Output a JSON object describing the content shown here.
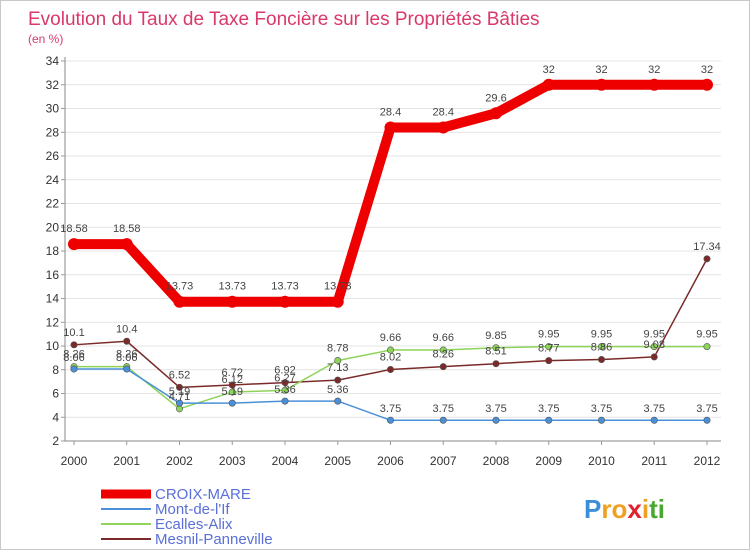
{
  "chart_data": {
    "type": "line",
    "title": "Evolution du Taux de Taxe Foncière sur les Propriétés Bâties",
    "subtitle": "(en %)",
    "xlabel": "",
    "ylabel": "",
    "ylim": [
      2,
      34
    ],
    "yticks": [
      2,
      4,
      6,
      8,
      10,
      12,
      14,
      16,
      18,
      20,
      22,
      24,
      26,
      28,
      30,
      32,
      34
    ],
    "categories": [
      "2000",
      "2001",
      "2002",
      "2003",
      "2004",
      "2005",
      "2006",
      "2007",
      "2008",
      "2009",
      "2010",
      "2011",
      "2012"
    ],
    "series": [
      {
        "name": "CROIX-MARE",
        "color": "#ee0000",
        "values": [
          18.58,
          18.58,
          13.73,
          13.73,
          13.73,
          13.73,
          28.4,
          28.4,
          29.6,
          32,
          32,
          32,
          32
        ],
        "labels": [
          "18.58",
          "18.58",
          "13.73",
          "13.73",
          "13.73",
          "13.73",
          "28.4",
          "28.4",
          "29.6",
          "32",
          "32",
          "32",
          "32"
        ]
      },
      {
        "name": "Mont-de-l'If",
        "color": "#4a90d9",
        "values": [
          8.06,
          8.06,
          5.19,
          5.19,
          5.36,
          5.36,
          3.75,
          3.75,
          3.75,
          3.75,
          3.75,
          3.75,
          3.75
        ],
        "labels": [
          "8.06",
          "8.06",
          "5.19",
          "5.19",
          "5.36",
          "5.36",
          "3.75",
          "3.75",
          "3.75",
          "3.75",
          "3.75",
          "3.75",
          "3.75"
        ]
      },
      {
        "name": "Ecalles-Alix",
        "color": "#8ed45a",
        "values": [
          8.26,
          8.26,
          4.71,
          6.12,
          6.27,
          8.78,
          9.66,
          9.66,
          9.85,
          9.95,
          9.95,
          9.95,
          9.95
        ],
        "labels": [
          "8.26",
          "8.26",
          "4.71",
          "6.12",
          "6.27",
          "8.78",
          "9.66",
          "9.66",
          "9.85",
          "9.95",
          "9.95",
          "9.95",
          "9.95"
        ]
      },
      {
        "name": "Mesnil-Panneville",
        "color": "#7b2a2a",
        "values": [
          10.1,
          10.4,
          6.52,
          6.72,
          6.92,
          7.13,
          8.02,
          8.26,
          8.51,
          8.77,
          8.86,
          9.08,
          17.34
        ],
        "labels": [
          "10.1",
          "10.4",
          "6.52",
          "6.72",
          "6.92",
          "7.13",
          "8.02",
          "8.26",
          "8.51",
          "8.77",
          "8.86",
          "9.08",
          "17.34"
        ]
      }
    ],
    "legend": "bottom-left",
    "watermark": "Proxiti"
  }
}
